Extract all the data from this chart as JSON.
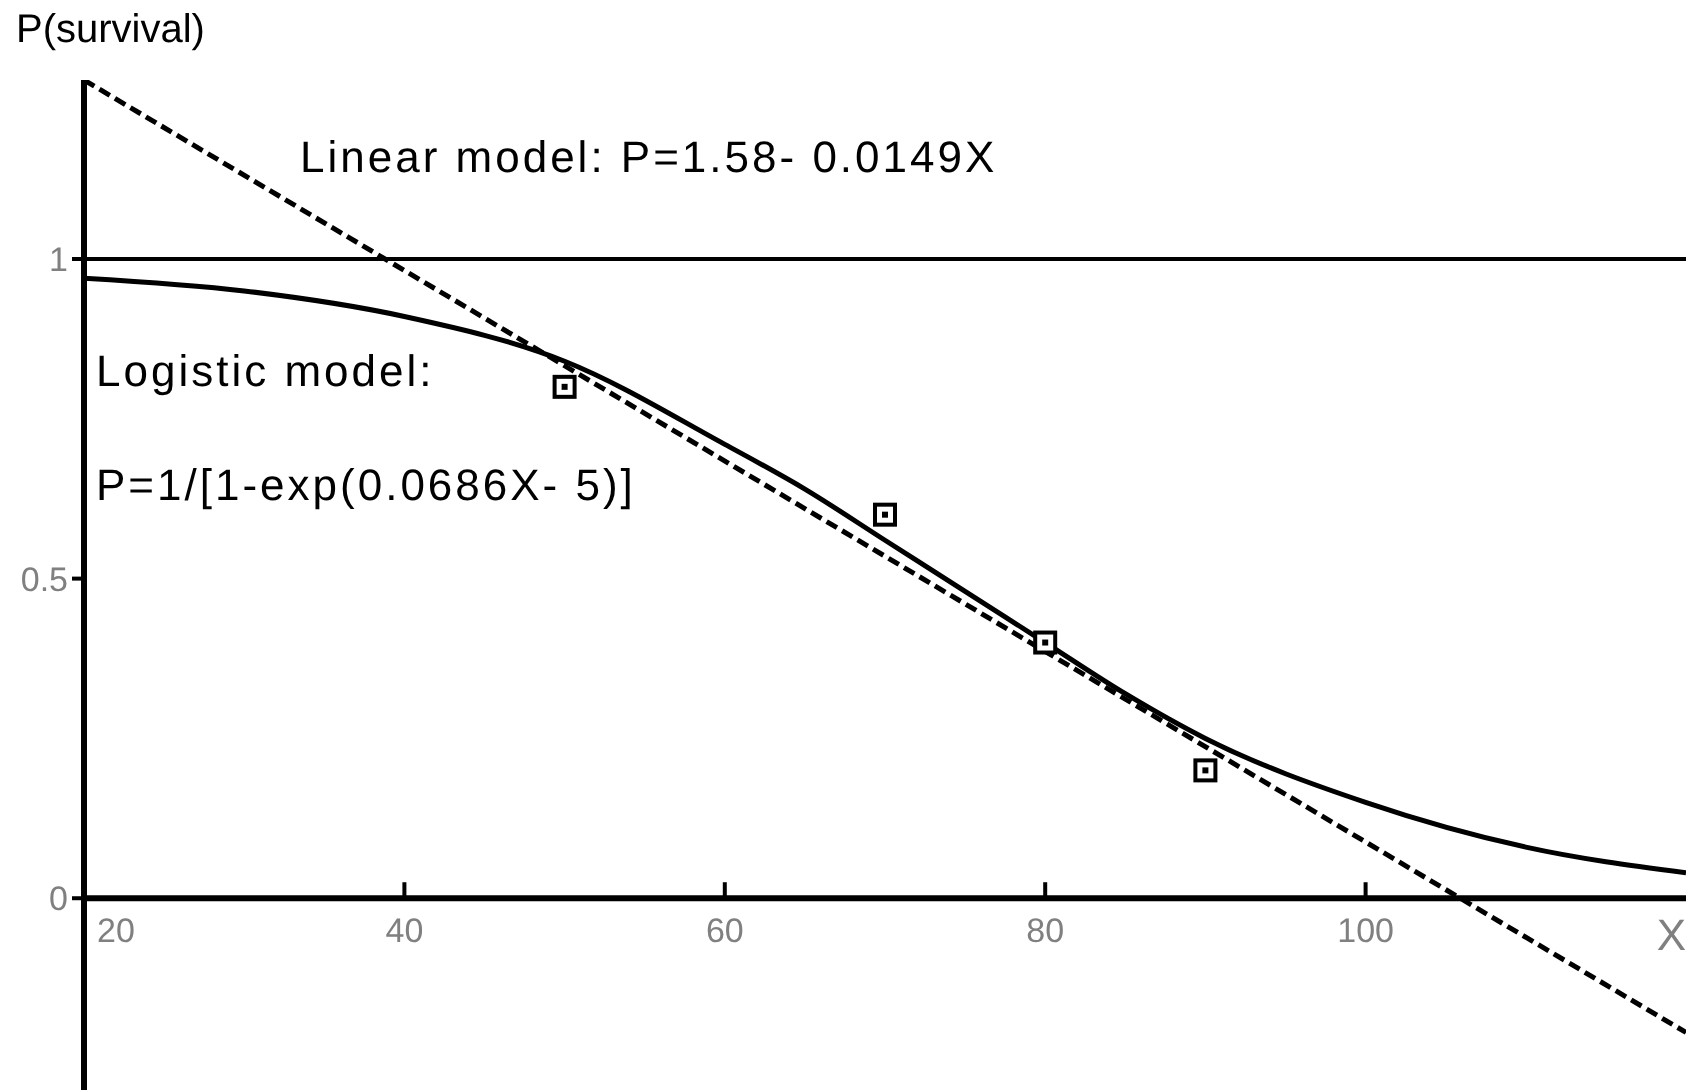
{
  "chart_data": {
    "type": "line",
    "ylabel": "P(survival)",
    "xlabel": "X",
    "annotations": [
      "Linear model: P=1.58- 0.0149X",
      "Logistic model:",
      "P=1/[1-exp(0.0686X- 5)]"
    ],
    "series": [
      {
        "color": "#000000",
        "line_style": "dashed",
        "marker": "none",
        "x": [
          20,
          120
        ],
        "values": [
          1.28,
          -0.21
        ]
      },
      {
        "color": "#000000",
        "line_style": "solid",
        "marker": "none",
        "x": [
          20,
          30,
          40,
          50,
          60,
          65,
          70,
          75,
          80,
          85,
          90,
          100,
          110,
          120
        ],
        "values": [
          0.97,
          0.95,
          0.91,
          0.84,
          0.71,
          0.64,
          0.56,
          0.48,
          0.4,
          0.32,
          0.25,
          0.15,
          0.08,
          0.04
        ]
      },
      {
        "type": "scatter",
        "color": "#000000",
        "marker": "square",
        "x": [
          50,
          70,
          80,
          90
        ],
        "values": [
          0.8,
          0.6,
          0.4,
          0.2
        ]
      }
    ],
    "xlim": [
      20,
      120
    ],
    "xticks": [
      20,
      40,
      60,
      80,
      100
    ],
    "ylim": [
      -0.3,
      1.28
    ],
    "yticks": [
      0,
      0.5,
      1
    ],
    "ref_lines": [
      {
        "axis": "y",
        "value": 1,
        "color": "#000000",
        "line_style": "solid"
      }
    ],
    "grid": false
  }
}
